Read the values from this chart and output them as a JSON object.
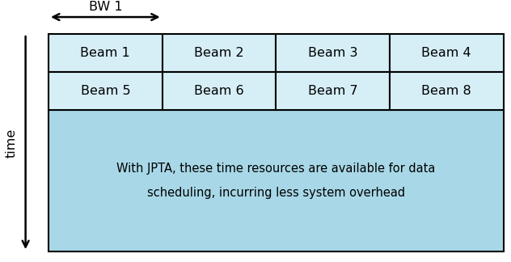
{
  "bg_color": "#ffffff",
  "light_blue": "#a8d8e8",
  "lighter_blue": "#d6eff7",
  "cell_border": "#000000",
  "beam_rows": [
    [
      "Beam 1",
      "Beam 2",
      "Beam 3",
      "Beam 4"
    ],
    [
      "Beam 5",
      "Beam 6",
      "Beam 7",
      "Beam 8"
    ]
  ],
  "main_text_line1": "With JPTA, these time resources are available for data",
  "main_text_line2": "scheduling, incurring less system overhead",
  "bw_label": "BW 1",
  "time_label": "time",
  "fig_width": 6.32,
  "fig_height": 3.24,
  "dpi": 100,
  "lw": 1.5
}
